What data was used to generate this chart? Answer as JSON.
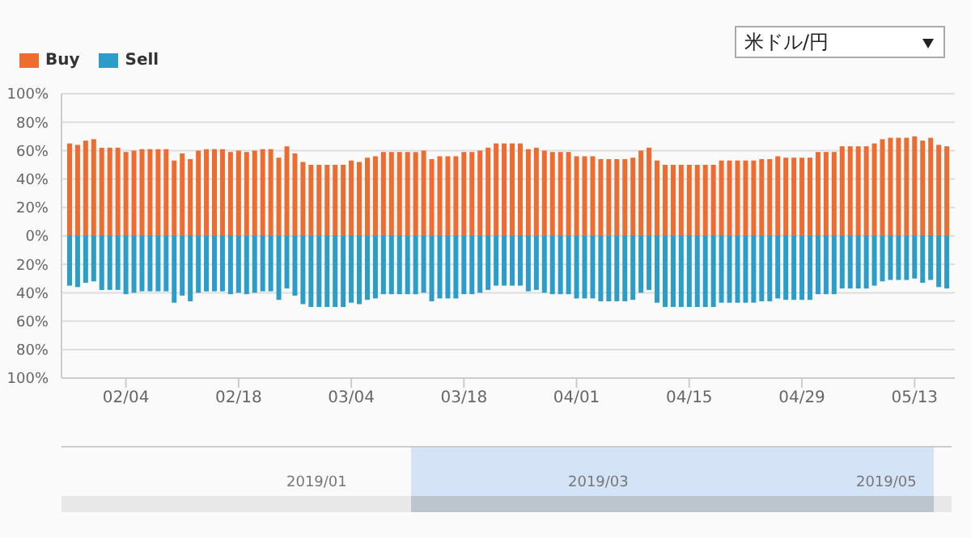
{
  "chart_data": {
    "type": "bar",
    "x": [
      "2019-01-28",
      "2019-01-29",
      "2019-01-30",
      "2019-01-31",
      "2019-02-01",
      "2019-02-02",
      "2019-02-03",
      "2019-02-04",
      "2019-02-05",
      "2019-02-06",
      "2019-02-07",
      "2019-02-08",
      "2019-02-09",
      "2019-02-10",
      "2019-02-11",
      "2019-02-12",
      "2019-02-13",
      "2019-02-14",
      "2019-02-15",
      "2019-02-16",
      "2019-02-17",
      "2019-02-18",
      "2019-02-19",
      "2019-02-20",
      "2019-02-21",
      "2019-02-22",
      "2019-02-23",
      "2019-02-24",
      "2019-02-25",
      "2019-02-26",
      "2019-02-27",
      "2019-02-28",
      "2019-03-01",
      "2019-03-02",
      "2019-03-03",
      "2019-03-04",
      "2019-03-05",
      "2019-03-06",
      "2019-03-07",
      "2019-03-08",
      "2019-03-09",
      "2019-03-10",
      "2019-03-11",
      "2019-03-12",
      "2019-03-13",
      "2019-03-14",
      "2019-03-15",
      "2019-03-16",
      "2019-03-17",
      "2019-03-18",
      "2019-03-19",
      "2019-03-20",
      "2019-03-21",
      "2019-03-22",
      "2019-03-23",
      "2019-03-24",
      "2019-03-25",
      "2019-03-26",
      "2019-03-27",
      "2019-03-28",
      "2019-03-29",
      "2019-03-30",
      "2019-03-31",
      "2019-04-01",
      "2019-04-02",
      "2019-04-03",
      "2019-04-04",
      "2019-04-05",
      "2019-04-06",
      "2019-04-07",
      "2019-04-08",
      "2019-04-09",
      "2019-04-10",
      "2019-04-11",
      "2019-04-12",
      "2019-04-13",
      "2019-04-14",
      "2019-04-15",
      "2019-04-16",
      "2019-04-17",
      "2019-04-18",
      "2019-04-19",
      "2019-04-20",
      "2019-04-21",
      "2019-04-22",
      "2019-04-23",
      "2019-04-24",
      "2019-04-25",
      "2019-04-26",
      "2019-04-27",
      "2019-04-28",
      "2019-04-29",
      "2019-04-30",
      "2019-05-01",
      "2019-05-02",
      "2019-05-03",
      "2019-05-04",
      "2019-05-05",
      "2019-05-06",
      "2019-05-07",
      "2019-05-08",
      "2019-05-09",
      "2019-05-10",
      "2019-05-11",
      "2019-05-12",
      "2019-05-13",
      "2019-05-14",
      "2019-05-15",
      "2019-05-16",
      "2019-05-17"
    ],
    "series": [
      {
        "name": "Buy",
        "color": "#ee6c2f",
        "values": [
          65,
          64,
          67,
          68,
          62,
          62,
          62,
          59,
          60,
          61,
          61,
          61,
          61,
          53,
          58,
          54,
          60,
          61,
          61,
          61,
          59,
          60,
          59,
          60,
          61,
          61,
          55,
          63,
          58,
          52,
          50,
          50,
          50,
          50,
          50,
          53,
          52,
          55,
          56,
          59,
          59,
          59,
          59,
          59,
          60,
          54,
          56,
          56,
          56,
          59,
          59,
          60,
          62,
          65,
          65,
          65,
          65,
          61,
          62,
          60,
          59,
          59,
          59,
          56,
          56,
          56,
          54,
          54,
          54,
          54,
          55,
          60,
          62,
          53,
          50,
          50,
          50,
          50,
          50,
          50,
          50,
          53,
          53,
          53,
          53,
          53,
          54,
          54,
          56,
          55,
          55,
          55,
          55,
          59,
          59,
          59,
          63,
          63,
          63,
          63,
          65,
          68,
          69,
          69,
          69,
          70,
          67,
          69,
          64,
          63
        ]
      },
      {
        "name": "Sell",
        "color": "#2b9dc8",
        "values": [
          -35,
          -36,
          -33,
          -32,
          -38,
          -38,
          -38,
          -41,
          -40,
          -39,
          -39,
          -39,
          -39,
          -47,
          -42,
          -46,
          -40,
          -39,
          -39,
          -39,
          -41,
          -40,
          -41,
          -40,
          -39,
          -39,
          -45,
          -37,
          -42,
          -48,
          -50,
          -50,
          -50,
          -50,
          -50,
          -47,
          -48,
          -45,
          -44,
          -41,
          -41,
          -41,
          -41,
          -41,
          -40,
          -46,
          -44,
          -44,
          -44,
          -41,
          -41,
          -40,
          -38,
          -35,
          -35,
          -35,
          -35,
          -39,
          -38,
          -40,
          -41,
          -41,
          -41,
          -44,
          -44,
          -44,
          -46,
          -46,
          -46,
          -46,
          -45,
          -40,
          -38,
          -47,
          -50,
          -50,
          -50,
          -50,
          -50,
          -50,
          -50,
          -47,
          -47,
          -47,
          -47,
          -47,
          -46,
          -46,
          -44,
          -45,
          -45,
          -45,
          -45,
          -41,
          -41,
          -41,
          -37,
          -37,
          -37,
          -37,
          -35,
          -32,
          -31,
          -31,
          -31,
          -30,
          -33,
          -31,
          -36,
          -37
        ]
      }
    ],
    "xlim": [
      "2019-01-27",
      "2019-05-18"
    ],
    "xticks": [
      {
        "value": "2019-02-04",
        "label": "02/04"
      },
      {
        "value": "2019-02-18",
        "label": "02/18"
      },
      {
        "value": "2019-03-04",
        "label": "03/04"
      },
      {
        "value": "2019-03-18",
        "label": "03/18"
      },
      {
        "value": "2019-04-01",
        "label": "04/01"
      },
      {
        "value": "2019-04-15",
        "label": "04/15"
      },
      {
        "value": "2019-04-29",
        "label": "04/29"
      },
      {
        "value": "2019-05-13",
        "label": "05/13"
      }
    ],
    "ylim": [
      -100,
      100
    ],
    "yticks": [
      {
        "value": -100,
        "label": "100%"
      },
      {
        "value": -80,
        "label": "80%"
      },
      {
        "value": -60,
        "label": "60%"
      },
      {
        "value": -40,
        "label": "40%"
      },
      {
        "value": -20,
        "label": "20%"
      },
      {
        "value": 0,
        "label": "0%"
      },
      {
        "value": 20,
        "label": "20%"
      },
      {
        "value": 40,
        "label": "40%"
      },
      {
        "value": 60,
        "label": "60%"
      },
      {
        "value": 80,
        "label": "80%"
      },
      {
        "value": 100,
        "label": "100%"
      }
    ],
    "grid": "y",
    "legend": "top left",
    "stacked": true,
    "annotations": [
      "米ドル/円",
      "2019/01",
      "2019/03",
      "2019/05"
    ]
  }
}
